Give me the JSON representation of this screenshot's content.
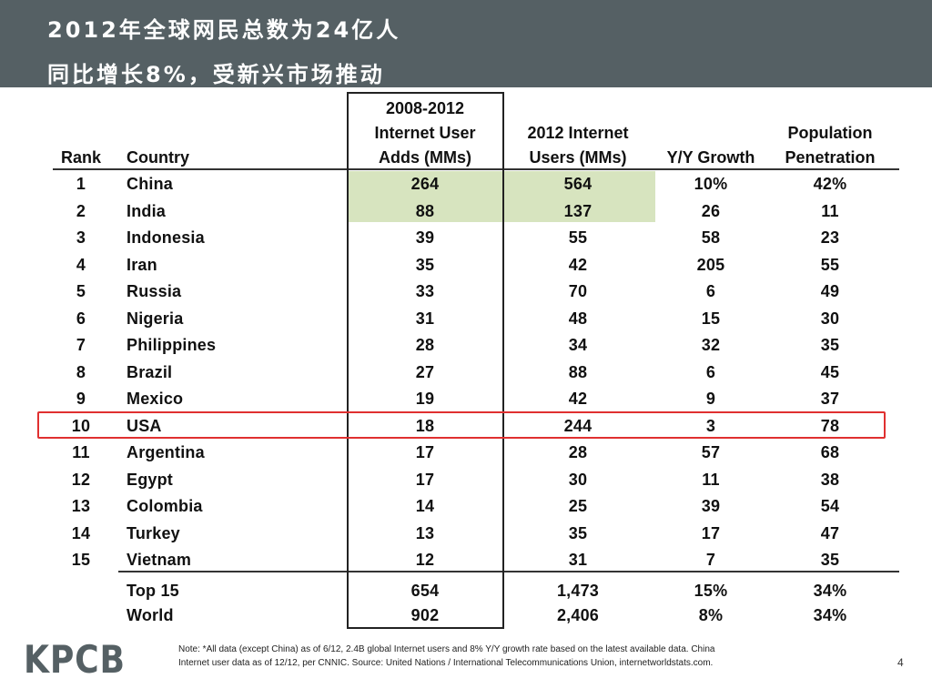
{
  "title": {
    "line1": "2012年全球网民总数为24亿人",
    "line2": "同比增长8%，受新兴市场推动"
  },
  "table": {
    "headers": {
      "rank": "Rank",
      "country": "Country",
      "adds": [
        "2008-2012",
        "Internet User",
        "Adds (MMs)"
      ],
      "users": [
        "2012 Internet",
        "Users (MMs)"
      ],
      "growth": "Y/Y Growth",
      "penetration": [
        "Population",
        "Penetration"
      ]
    },
    "rows": [
      {
        "rank": "1",
        "country": "China",
        "adds": "264",
        "users": "564",
        "growth": "10%",
        "penetration": "42%"
      },
      {
        "rank": "2",
        "country": "India",
        "adds": "88",
        "users": "137",
        "growth": "26",
        "penetration": "11"
      },
      {
        "rank": "3",
        "country": "Indonesia",
        "adds": "39",
        "users": "55",
        "growth": "58",
        "penetration": "23"
      },
      {
        "rank": "4",
        "country": "Iran",
        "adds": "35",
        "users": "42",
        "growth": "205",
        "penetration": "55"
      },
      {
        "rank": "5",
        "country": "Russia",
        "adds": "33",
        "users": "70",
        "growth": "6",
        "penetration": "49"
      },
      {
        "rank": "6",
        "country": "Nigeria",
        "adds": "31",
        "users": "48",
        "growth": "15",
        "penetration": "30"
      },
      {
        "rank": "7",
        "country": "Philippines",
        "adds": "28",
        "users": "34",
        "growth": "32",
        "penetration": "35"
      },
      {
        "rank": "8",
        "country": "Brazil",
        "adds": "27",
        "users": "88",
        "growth": "6",
        "penetration": "45"
      },
      {
        "rank": "9",
        "country": "Mexico",
        "adds": "19",
        "users": "42",
        "growth": "9",
        "penetration": "37"
      },
      {
        "rank": "10",
        "country": "USA",
        "adds": "18",
        "users": "244",
        "growth": "3",
        "penetration": "78"
      },
      {
        "rank": "11",
        "country": "Argentina",
        "adds": "17",
        "users": "28",
        "growth": "57",
        "penetration": "68"
      },
      {
        "rank": "12",
        "country": "Egypt",
        "adds": "17",
        "users": "30",
        "growth": "11",
        "penetration": "38"
      },
      {
        "rank": "13",
        "country": "Colombia",
        "adds": "14",
        "users": "25",
        "growth": "39",
        "penetration": "54"
      },
      {
        "rank": "14",
        "country": "Turkey",
        "adds": "13",
        "users": "35",
        "growth": "17",
        "penetration": "47"
      },
      {
        "rank": "15",
        "country": "Vietnam",
        "adds": "12",
        "users": "31",
        "growth": "7",
        "penetration": "35"
      }
    ],
    "totals": [
      {
        "label": "Top 15",
        "adds": "654",
        "users": "1,473",
        "growth": "15%",
        "penetration": "34%"
      },
      {
        "label": "World",
        "adds": "902",
        "users": "2,406",
        "growth": "8%",
        "penetration": "34%"
      }
    ]
  },
  "colors": {
    "header_bg": "#556064",
    "highlight_green": "#d7e4bf",
    "usa_outline": "#e03030"
  },
  "footer": {
    "logo": "KPCB",
    "note_line1": "Note: *All data (except China) as of 6/12, 2.4B global Internet users and 8% Y/Y growth rate based on the latest available data. China",
    "note_line2": "Internet user data as of 12/12, per CNNIC. Source: United Nations / International Telecommunications Union, internetworldstats.com.",
    "page_number": "4"
  }
}
